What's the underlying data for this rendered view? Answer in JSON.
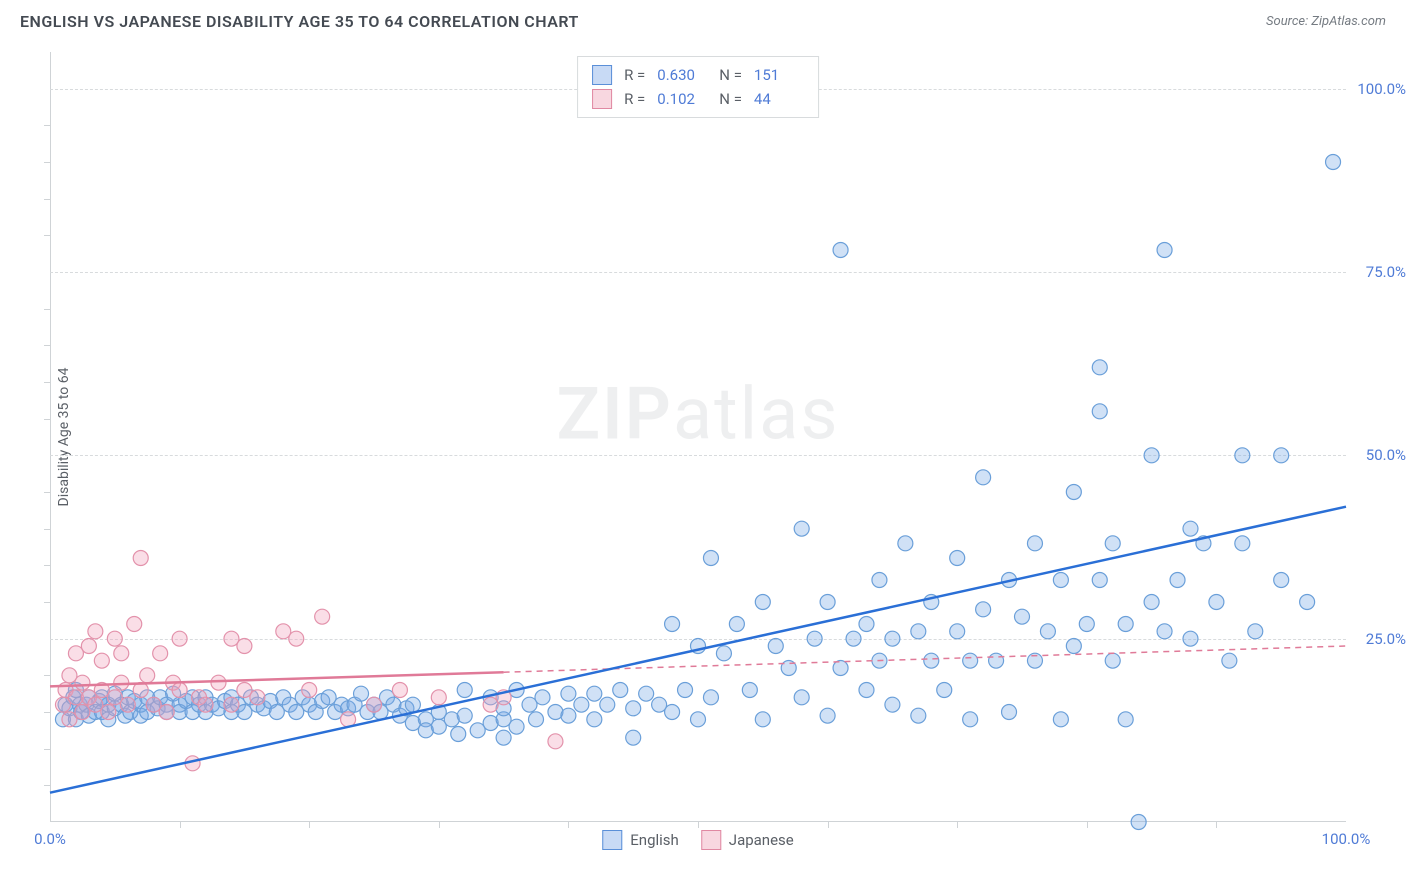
{
  "title": "ENGLISH VS JAPANESE DISABILITY AGE 35 TO 64 CORRELATION CHART",
  "source": "Source: ZipAtlas.com",
  "y_axis_label": "Disability Age 35 to 64",
  "watermark_zip": "ZIP",
  "watermark_atlas": "atlas",
  "chart": {
    "type": "scatter",
    "xlim": [
      0,
      100
    ],
    "ylim": [
      0,
      105
    ],
    "x_tick_labels": [
      {
        "pos": 0,
        "label": "0.0%"
      },
      {
        "pos": 100,
        "label": "100.0%"
      }
    ],
    "x_minor_ticks": [
      10,
      20,
      30,
      40,
      50,
      60,
      70,
      80,
      90
    ],
    "y_tick_labels": [
      {
        "pos": 25,
        "label": "25.0%"
      },
      {
        "pos": 50,
        "label": "50.0%"
      },
      {
        "pos": 75,
        "label": "75.0%"
      },
      {
        "pos": 100,
        "label": "100.0%"
      }
    ],
    "y_minor_ticks": [
      5,
      10,
      15,
      20,
      30,
      35,
      40,
      45,
      55,
      60,
      65,
      70,
      80,
      85,
      90,
      95
    ],
    "grid_color": "#d8dbdd",
    "background_color": "#ffffff",
    "marker_radius": 7.5,
    "marker_stroke_width": 1.2,
    "trend_line_width": 2.5,
    "series": {
      "english": {
        "label": "English",
        "fill": "rgba(120,170,230,0.35)",
        "stroke": "#6a9fd9",
        "trend_color": "#2a6fd6",
        "trend": {
          "x1": 0,
          "y1": 4,
          "x2": 100,
          "y2": 43
        },
        "trend_dash_after_x": null,
        "R": "0.630",
        "N": "151",
        "points": [
          [
            1,
            14
          ],
          [
            1.2,
            16
          ],
          [
            1.5,
            15.5
          ],
          [
            1.8,
            17
          ],
          [
            2,
            18
          ],
          [
            2,
            14
          ],
          [
            2.3,
            16
          ],
          [
            2.4,
            15
          ],
          [
            2.8,
            16
          ],
          [
            3,
            14.5
          ],
          [
            3,
            17
          ],
          [
            3.5,
            15
          ],
          [
            3.8,
            16.5
          ],
          [
            4,
            15
          ],
          [
            4,
            17
          ],
          [
            4.5,
            16
          ],
          [
            4.5,
            14
          ],
          [
            5,
            15.5
          ],
          [
            5,
            17.5
          ],
          [
            5.5,
            16
          ],
          [
            5.8,
            14.5
          ],
          [
            6,
            17
          ],
          [
            6.2,
            15
          ],
          [
            6.5,
            16.5
          ],
          [
            7,
            14.5
          ],
          [
            7,
            16
          ],
          [
            7.5,
            17
          ],
          [
            7.5,
            15
          ],
          [
            8,
            16
          ],
          [
            8.3,
            15.5
          ],
          [
            8.5,
            17
          ],
          [
            9,
            16
          ],
          [
            9,
            15
          ],
          [
            9.5,
            17.5
          ],
          [
            10,
            16
          ],
          [
            10,
            15
          ],
          [
            10.5,
            16.5
          ],
          [
            11,
            15
          ],
          [
            11,
            17
          ],
          [
            11.5,
            16
          ],
          [
            12,
            15
          ],
          [
            12,
            17
          ],
          [
            12.5,
            16
          ],
          [
            13,
            15.5
          ],
          [
            13.5,
            16.5
          ],
          [
            14,
            15
          ],
          [
            14,
            17
          ],
          [
            14.5,
            16
          ],
          [
            15,
            15
          ],
          [
            15.5,
            17
          ],
          [
            16,
            16
          ],
          [
            16.5,
            15.5
          ],
          [
            17,
            16.5
          ],
          [
            17.5,
            15
          ],
          [
            18,
            17
          ],
          [
            18.5,
            16
          ],
          [
            19,
            15
          ],
          [
            19.5,
            17
          ],
          [
            20,
            16
          ],
          [
            20.5,
            15
          ],
          [
            21,
            16.5
          ],
          [
            21.5,
            17
          ],
          [
            22,
            15
          ],
          [
            22.5,
            16
          ],
          [
            23,
            15.5
          ],
          [
            23.5,
            16
          ],
          [
            24,
            17.5
          ],
          [
            24.5,
            15
          ],
          [
            25,
            16
          ],
          [
            25.5,
            15
          ],
          [
            26,
            17
          ],
          [
            26.5,
            16
          ],
          [
            27,
            14.5
          ],
          [
            27.5,
            15.5
          ],
          [
            28,
            13.5
          ],
          [
            28,
            16
          ],
          [
            29,
            14
          ],
          [
            29,
            12.5
          ],
          [
            30,
            15
          ],
          [
            30,
            13
          ],
          [
            31,
            14
          ],
          [
            31.5,
            12
          ],
          [
            32,
            14.5
          ],
          [
            32,
            18
          ],
          [
            33,
            12.5
          ],
          [
            34,
            13.5
          ],
          [
            34,
            17
          ],
          [
            35,
            14
          ],
          [
            35,
            11.5
          ],
          [
            35,
            15.5
          ],
          [
            36,
            13
          ],
          [
            36,
            18
          ],
          [
            37,
            16
          ],
          [
            37.5,
            14
          ],
          [
            38,
            17
          ],
          [
            39,
            15
          ],
          [
            40,
            17.5
          ],
          [
            40,
            14.5
          ],
          [
            41,
            16
          ],
          [
            42,
            17.5
          ],
          [
            42,
            14
          ],
          [
            43,
            16
          ],
          [
            44,
            18
          ],
          [
            45,
            15.5
          ],
          [
            45,
            11.5
          ],
          [
            46,
            17.5
          ],
          [
            47,
            16
          ],
          [
            48,
            27
          ],
          [
            48,
            15
          ],
          [
            49,
            18
          ],
          [
            50,
            14
          ],
          [
            50,
            24
          ],
          [
            51,
            36
          ],
          [
            51,
            17
          ],
          [
            52,
            23
          ],
          [
            53,
            27
          ],
          [
            54,
            18
          ],
          [
            55,
            30
          ],
          [
            55,
            14
          ],
          [
            56,
            24
          ],
          [
            57,
            21
          ],
          [
            58,
            40
          ],
          [
            58,
            17
          ],
          [
            59,
            25
          ],
          [
            60,
            30
          ],
          [
            60,
            14.5
          ],
          [
            61,
            21
          ],
          [
            61,
            78
          ],
          [
            62,
            25
          ],
          [
            63,
            18
          ],
          [
            63,
            27
          ],
          [
            64,
            22
          ],
          [
            64,
            33
          ],
          [
            65,
            16
          ],
          [
            65,
            25
          ],
          [
            66,
            38
          ],
          [
            67,
            14.5
          ],
          [
            67,
            26
          ],
          [
            68,
            22
          ],
          [
            68,
            30
          ],
          [
            69,
            18
          ],
          [
            70,
            36
          ],
          [
            70,
            26
          ],
          [
            71,
            22
          ],
          [
            71,
            14
          ],
          [
            72,
            29
          ],
          [
            72,
            47
          ],
          [
            73,
            22
          ],
          [
            74,
            33
          ],
          [
            74,
            15
          ],
          [
            75,
            28
          ],
          [
            76,
            22
          ],
          [
            76,
            38
          ],
          [
            77,
            26
          ],
          [
            78,
            14
          ],
          [
            78,
            33
          ],
          [
            79,
            24
          ],
          [
            79,
            45
          ],
          [
            80,
            27
          ],
          [
            81,
            33
          ],
          [
            81,
            62
          ],
          [
            81,
            56
          ],
          [
            82,
            22
          ],
          [
            82,
            38
          ],
          [
            83,
            27
          ],
          [
            83,
            14
          ],
          [
            84,
            0
          ],
          [
            85,
            50
          ],
          [
            85,
            30
          ],
          [
            86,
            26
          ],
          [
            86,
            78
          ],
          [
            87,
            33
          ],
          [
            88,
            25
          ],
          [
            88,
            40
          ],
          [
            89,
            38
          ],
          [
            90,
            30
          ],
          [
            91,
            22
          ],
          [
            92,
            38
          ],
          [
            92,
            50
          ],
          [
            93,
            26
          ],
          [
            95,
            50
          ],
          [
            95,
            33
          ],
          [
            97,
            30
          ],
          [
            99,
            90
          ]
        ]
      },
      "japanese": {
        "label": "Japanese",
        "fill": "rgba(240,160,185,0.35)",
        "stroke": "#e392ab",
        "trend_color": "#e07a98",
        "trend": {
          "x1": 0,
          "y1": 18.5,
          "x2": 100,
          "y2": 24
        },
        "trend_dash_after_x": 35,
        "R": "0.102",
        "N": "44",
        "points": [
          [
            1,
            16
          ],
          [
            1.2,
            18
          ],
          [
            1.5,
            20
          ],
          [
            1.5,
            14
          ],
          [
            2,
            17
          ],
          [
            2,
            23
          ],
          [
            2.5,
            19
          ],
          [
            2.5,
            15
          ],
          [
            3,
            24
          ],
          [
            3,
            17
          ],
          [
            3.5,
            16
          ],
          [
            3.5,
            26
          ],
          [
            4,
            18
          ],
          [
            4,
            22
          ],
          [
            4.5,
            15
          ],
          [
            5,
            25
          ],
          [
            5,
            17
          ],
          [
            5.5,
            19
          ],
          [
            5.5,
            23
          ],
          [
            6,
            16
          ],
          [
            6.5,
            27
          ],
          [
            7,
            18
          ],
          [
            7,
            36
          ],
          [
            7.5,
            20
          ],
          [
            8,
            16
          ],
          [
            8.5,
            23
          ],
          [
            9,
            15
          ],
          [
            9.5,
            19
          ],
          [
            10,
            18
          ],
          [
            10,
            25
          ],
          [
            11,
            8
          ],
          [
            11.5,
            17
          ],
          [
            12,
            16
          ],
          [
            13,
            19
          ],
          [
            14,
            25
          ],
          [
            14,
            16
          ],
          [
            15,
            18
          ],
          [
            15,
            24
          ],
          [
            16,
            17
          ],
          [
            18,
            26
          ],
          [
            19,
            25
          ],
          [
            20,
            18
          ],
          [
            21,
            28
          ],
          [
            23,
            14
          ],
          [
            25,
            16
          ],
          [
            27,
            18
          ],
          [
            30,
            17
          ],
          [
            34,
            16
          ],
          [
            35,
            17
          ],
          [
            39,
            11
          ]
        ]
      }
    }
  },
  "stats_legend": {
    "r_label": "R =",
    "n_label": "N ="
  },
  "bottom_legend_labels": [
    "English",
    "Japanese"
  ]
}
